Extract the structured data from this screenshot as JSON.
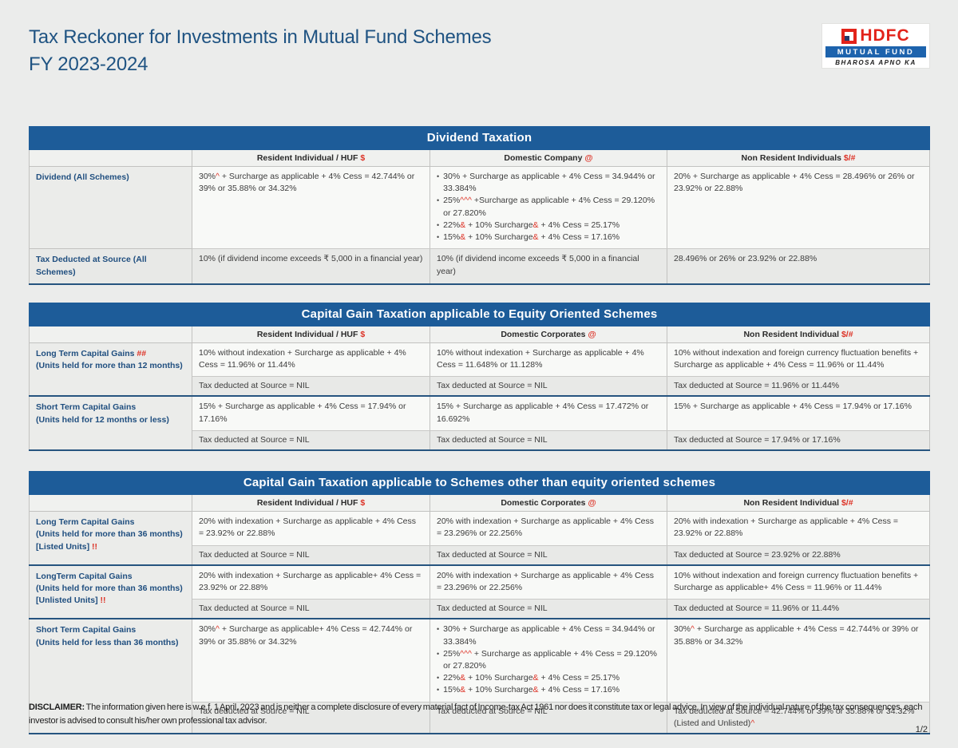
{
  "page": {
    "title_line1": "Tax Reckoner for Investments in Mutual Fund Schemes",
    "title_line2": "FY 2023-2024",
    "disclaimer_label": "DISCLAIMER:",
    "disclaimer_text": " The information given here is w.e.f. 1 April, 2023 and is neither a complete disclosure of every material fact of Income-tax Act 1961 nor does it constitute tax or legal advice. In view of the individual nature of the tax consequences, each investor is advised to consult his/her own professional tax advisor.",
    "page_number": "1/2"
  },
  "logo": {
    "hdfc": "HDFC",
    "mutual_fund": "MUTUAL FUND",
    "tagline": "BHAROSA APNO KA"
  },
  "colors": {
    "header_bar_blue": "#1d5c99",
    "title_blue": "#1f5382",
    "label_navy": "#1f4e7f",
    "accent_red": "#dd3327",
    "hdfc_red": "#e2231a",
    "band_blue": "#1d63ad"
  },
  "tables": [
    {
      "title": "Dividend Taxation",
      "columns": [
        {
          "label": "",
          "symbol": ""
        },
        {
          "label": "Resident Individual / HUF ",
          "symbol": "$"
        },
        {
          "label": "Domestic Company ",
          "symbol": "@"
        },
        {
          "label": "Non Resident Individuals ",
          "symbol": "$/#"
        }
      ],
      "groups": [
        {
          "label_lines": [
            [
              "Dividend (All Schemes)"
            ]
          ],
          "shaded": false,
          "cells": [
            {
              "main": [
                "30%",
                {
                  "r": "^"
                },
                " + Surcharge as applicable + 4% Cess = 42.744% or 39% or 35.88% or 34.32%"
              ]
            },
            {
              "bullets": [
                [
                  "30% + Surcharge as applicable + 4% Cess = 34.944% or 33.384%"
                ],
                [
                  "25%",
                  {
                    "r": "^^^"
                  },
                  " +Surcharge as applicable + 4% Cess = 29.120% or 27.820%"
                ],
                [
                  "22%",
                  {
                    "r": "&"
                  },
                  " + 10% Surcharge",
                  {
                    "r": "&"
                  },
                  " + 4% Cess = 25.17%"
                ],
                [
                  "15%",
                  {
                    "r": "&"
                  },
                  " + 10% Surcharge",
                  {
                    "r": "&"
                  },
                  " + 4% Cess = 17.16%"
                ]
              ]
            },
            {
              "main": [
                "20% + Surcharge as applicable + 4% Cess = 28.496% or 26% or 23.92% or 22.88%"
              ]
            }
          ]
        },
        {
          "label_lines": [
            [
              "Tax Deducted at Source (All Schemes)"
            ]
          ],
          "shaded": true,
          "cells": [
            {
              "main": [
                "10% (if dividend income exceeds ₹ 5,000 in a financial year)"
              ]
            },
            {
              "main": [
                "10% (if dividend income exceeds ₹ 5,000 in a financial year)"
              ]
            },
            {
              "main": [
                "28.496% or 26% or 23.92% or 22.88%"
              ]
            }
          ]
        }
      ]
    },
    {
      "title": "Capital Gain Taxation applicable to Equity Oriented Schemes",
      "columns": [
        {
          "label": "",
          "symbol": ""
        },
        {
          "label": "Resident Individual / HUF ",
          "symbol": "$"
        },
        {
          "label": "Domestic Corporates ",
          "symbol": "@"
        },
        {
          "label": "Non Resident Individual ",
          "symbol": "$/#"
        }
      ],
      "groups": [
        {
          "label_lines": [
            [
              "Long Term Capital Gains ",
              {
                "r": "##"
              }
            ],
            [
              "(Units held for more than 12 months)"
            ]
          ],
          "shaded": false,
          "cells": [
            {
              "main": [
                "10% without indexation + Surcharge as applicable + 4% Cess = 11.96% or 11.44%"
              ],
              "tds": [
                "Tax deducted at Source = NIL"
              ]
            },
            {
              "main": [
                "10% without indexation + Surcharge as applicable + 4% Cess = 11.648% or 11.128%"
              ],
              "tds": [
                "Tax deducted at Source = NIL"
              ]
            },
            {
              "main": [
                "10% without indexation and foreign currency fluctuation benefits + Surcharge as applicable + 4% Cess = 11.96% or 11.44%"
              ],
              "tds": [
                "Tax deducted at Source = 11.96% or 11.44%"
              ]
            }
          ]
        },
        {
          "label_lines": [
            [
              "Short Term Capital Gains"
            ],
            [
              "(Units held for 12 months or less)"
            ]
          ],
          "shaded": false,
          "cells": [
            {
              "main": [
                "15% + Surcharge as applicable + 4% Cess = 17.94% or 17.16%"
              ],
              "tds": [
                "Tax deducted at Source = NIL"
              ]
            },
            {
              "main": [
                "15% + Surcharge as applicable + 4% Cess = 17.472% or 16.692%"
              ],
              "tds": [
                "Tax deducted at Source = NIL"
              ]
            },
            {
              "main": [
                "15% + Surcharge as applicable + 4% Cess = 17.94% or 17.16%"
              ],
              "tds": [
                "Tax deducted at Source = 17.94% or 17.16%"
              ]
            }
          ]
        }
      ]
    },
    {
      "title": "Capital Gain Taxation applicable to Schemes other than equity oriented schemes",
      "columns": [
        {
          "label": "",
          "symbol": ""
        },
        {
          "label": "Resident Individual / HUF ",
          "symbol": "$"
        },
        {
          "label": "Domestic Corporates ",
          "symbol": "@"
        },
        {
          "label": "Non Resident Individual ",
          "symbol": "$/#"
        }
      ],
      "groups": [
        {
          "label_lines": [
            [
              "Long Term Capital Gains"
            ],
            [
              "(Units held for more than 36 months)"
            ],
            [
              "[Listed Units] ",
              {
                "r": "!!"
              }
            ]
          ],
          "shaded": false,
          "cells": [
            {
              "main": [
                "20% with indexation + Surcharge as applicable + 4% Cess = 23.92% or 22.88%"
              ],
              "tds": [
                "Tax deducted at Source = NIL"
              ]
            },
            {
              "main": [
                "20% with indexation + Surcharge as applicable + 4% Cess = 23.296% or 22.256%"
              ],
              "tds": [
                "Tax deducted at Source = NIL"
              ]
            },
            {
              "main": [
                "20% with indexation + Surcharge as applicable + 4% Cess = 23.92% or 22.88%"
              ],
              "tds": [
                "Tax deducted at Source = 23.92% or 22.88%"
              ]
            }
          ]
        },
        {
          "label_lines": [
            [
              "LongTerm Capital Gains"
            ],
            [
              "(Units held for more than 36 months)"
            ],
            [
              "[Unlisted Units] ",
              {
                "r": "!!"
              }
            ]
          ],
          "shaded": false,
          "cells": [
            {
              "main": [
                "20% with indexation + Surcharge as applicable+ 4% Cess = 23.92% or 22.88%"
              ],
              "tds": [
                "Tax deducted at Source = NIL"
              ]
            },
            {
              "main": [
                "20% with indexation + Surcharge as applicable + 4% Cess = 23.296% or 22.256%"
              ],
              "tds": [
                "Tax deducted at Source = NIL"
              ]
            },
            {
              "main": [
                "10% without indexation and foreign currency fluctuation benefits + Surcharge as applicable+ 4% Cess = 11.96% or 11.44%"
              ],
              "tds": [
                "Tax deducted at Source = 11.96% or 11.44%"
              ]
            }
          ]
        },
        {
          "label_lines": [
            [
              "Short Term Capital Gains"
            ],
            [
              "(Units held for less than 36 months)"
            ]
          ],
          "shaded": false,
          "cells": [
            {
              "main": [
                "30%",
                {
                  "r": "^"
                },
                " + Surcharge as applicable+ 4% Cess = 42.744% or 39% or 35.88% or 34.32%"
              ],
              "tds": [
                "Tax deducted at Source = NIL"
              ]
            },
            {
              "bullets": [
                [
                  "30% + Surcharge as applicable + 4% Cess = 34.944% or 33.384%"
                ],
                [
                  "25%",
                  {
                    "r": "^^^"
                  },
                  " + Surcharge as applicable + 4% Cess = 29.120% or 27.820%"
                ],
                [
                  "22%",
                  {
                    "r": "&"
                  },
                  " + 10% Surcharge",
                  {
                    "r": "&"
                  },
                  " + 4% Cess = 25.17%"
                ],
                [
                  "15%",
                  {
                    "r": "&"
                  },
                  " + 10% Surcharge",
                  {
                    "r": "&"
                  },
                  " + 4% Cess = 17.16%"
                ]
              ],
              "tds": [
                "Tax deducted at Source = NIL"
              ]
            },
            {
              "main": [
                "30%",
                {
                  "r": "^"
                },
                " + Surcharge as applicable + 4% Cess = 42.744% or 39% or 35.88% or 34.32%"
              ],
              "tds": [
                "Tax deducted at Source = 42.744% or 39% or 35.88% or 34.32% (Listed and Unlisted)",
                {
                  "r": "^"
                }
              ]
            }
          ]
        }
      ]
    }
  ]
}
